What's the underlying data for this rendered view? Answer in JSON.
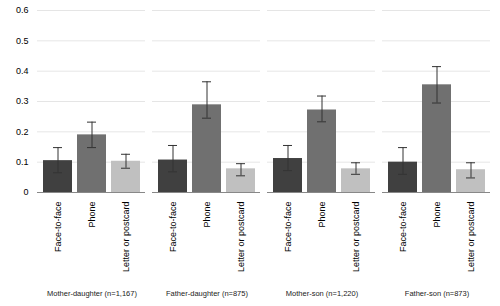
{
  "chart_data": {
    "type": "bar",
    "categories": [
      "Mother-daughter (n=1,167)",
      "Father-daughter (n=875)",
      "Mother-son (n=1,220)",
      "Father-son (n=873)"
    ],
    "series": [
      {
        "name": "Face-to-face",
        "color": "#404040",
        "values": [
          0.105,
          0.107,
          0.112,
          0.1
        ],
        "ci_low": [
          0.065,
          0.068,
          0.072,
          0.06
        ],
        "ci_high": [
          0.148,
          0.155,
          0.155,
          0.148
        ]
      },
      {
        "name": "Phone",
        "color": "#707070",
        "values": [
          0.19,
          0.289,
          0.272,
          0.355
        ],
        "ci_low": [
          0.148,
          0.245,
          0.233,
          0.295
        ],
        "ci_high": [
          0.232,
          0.365,
          0.318,
          0.415
        ]
      },
      {
        "name": "Letter or postcard",
        "color": "#c0c0c0",
        "values": [
          0.103,
          0.078,
          0.078,
          0.075
        ],
        "ci_low": [
          0.08,
          0.055,
          0.06,
          0.048
        ],
        "ci_high": [
          0.126,
          0.095,
          0.098,
          0.098
        ]
      }
    ],
    "ylim": [
      0,
      0.6
    ],
    "yticks": [
      0,
      0.1,
      0.2,
      0.3,
      0.4,
      0.5,
      0.6
    ],
    "grid": true
  }
}
